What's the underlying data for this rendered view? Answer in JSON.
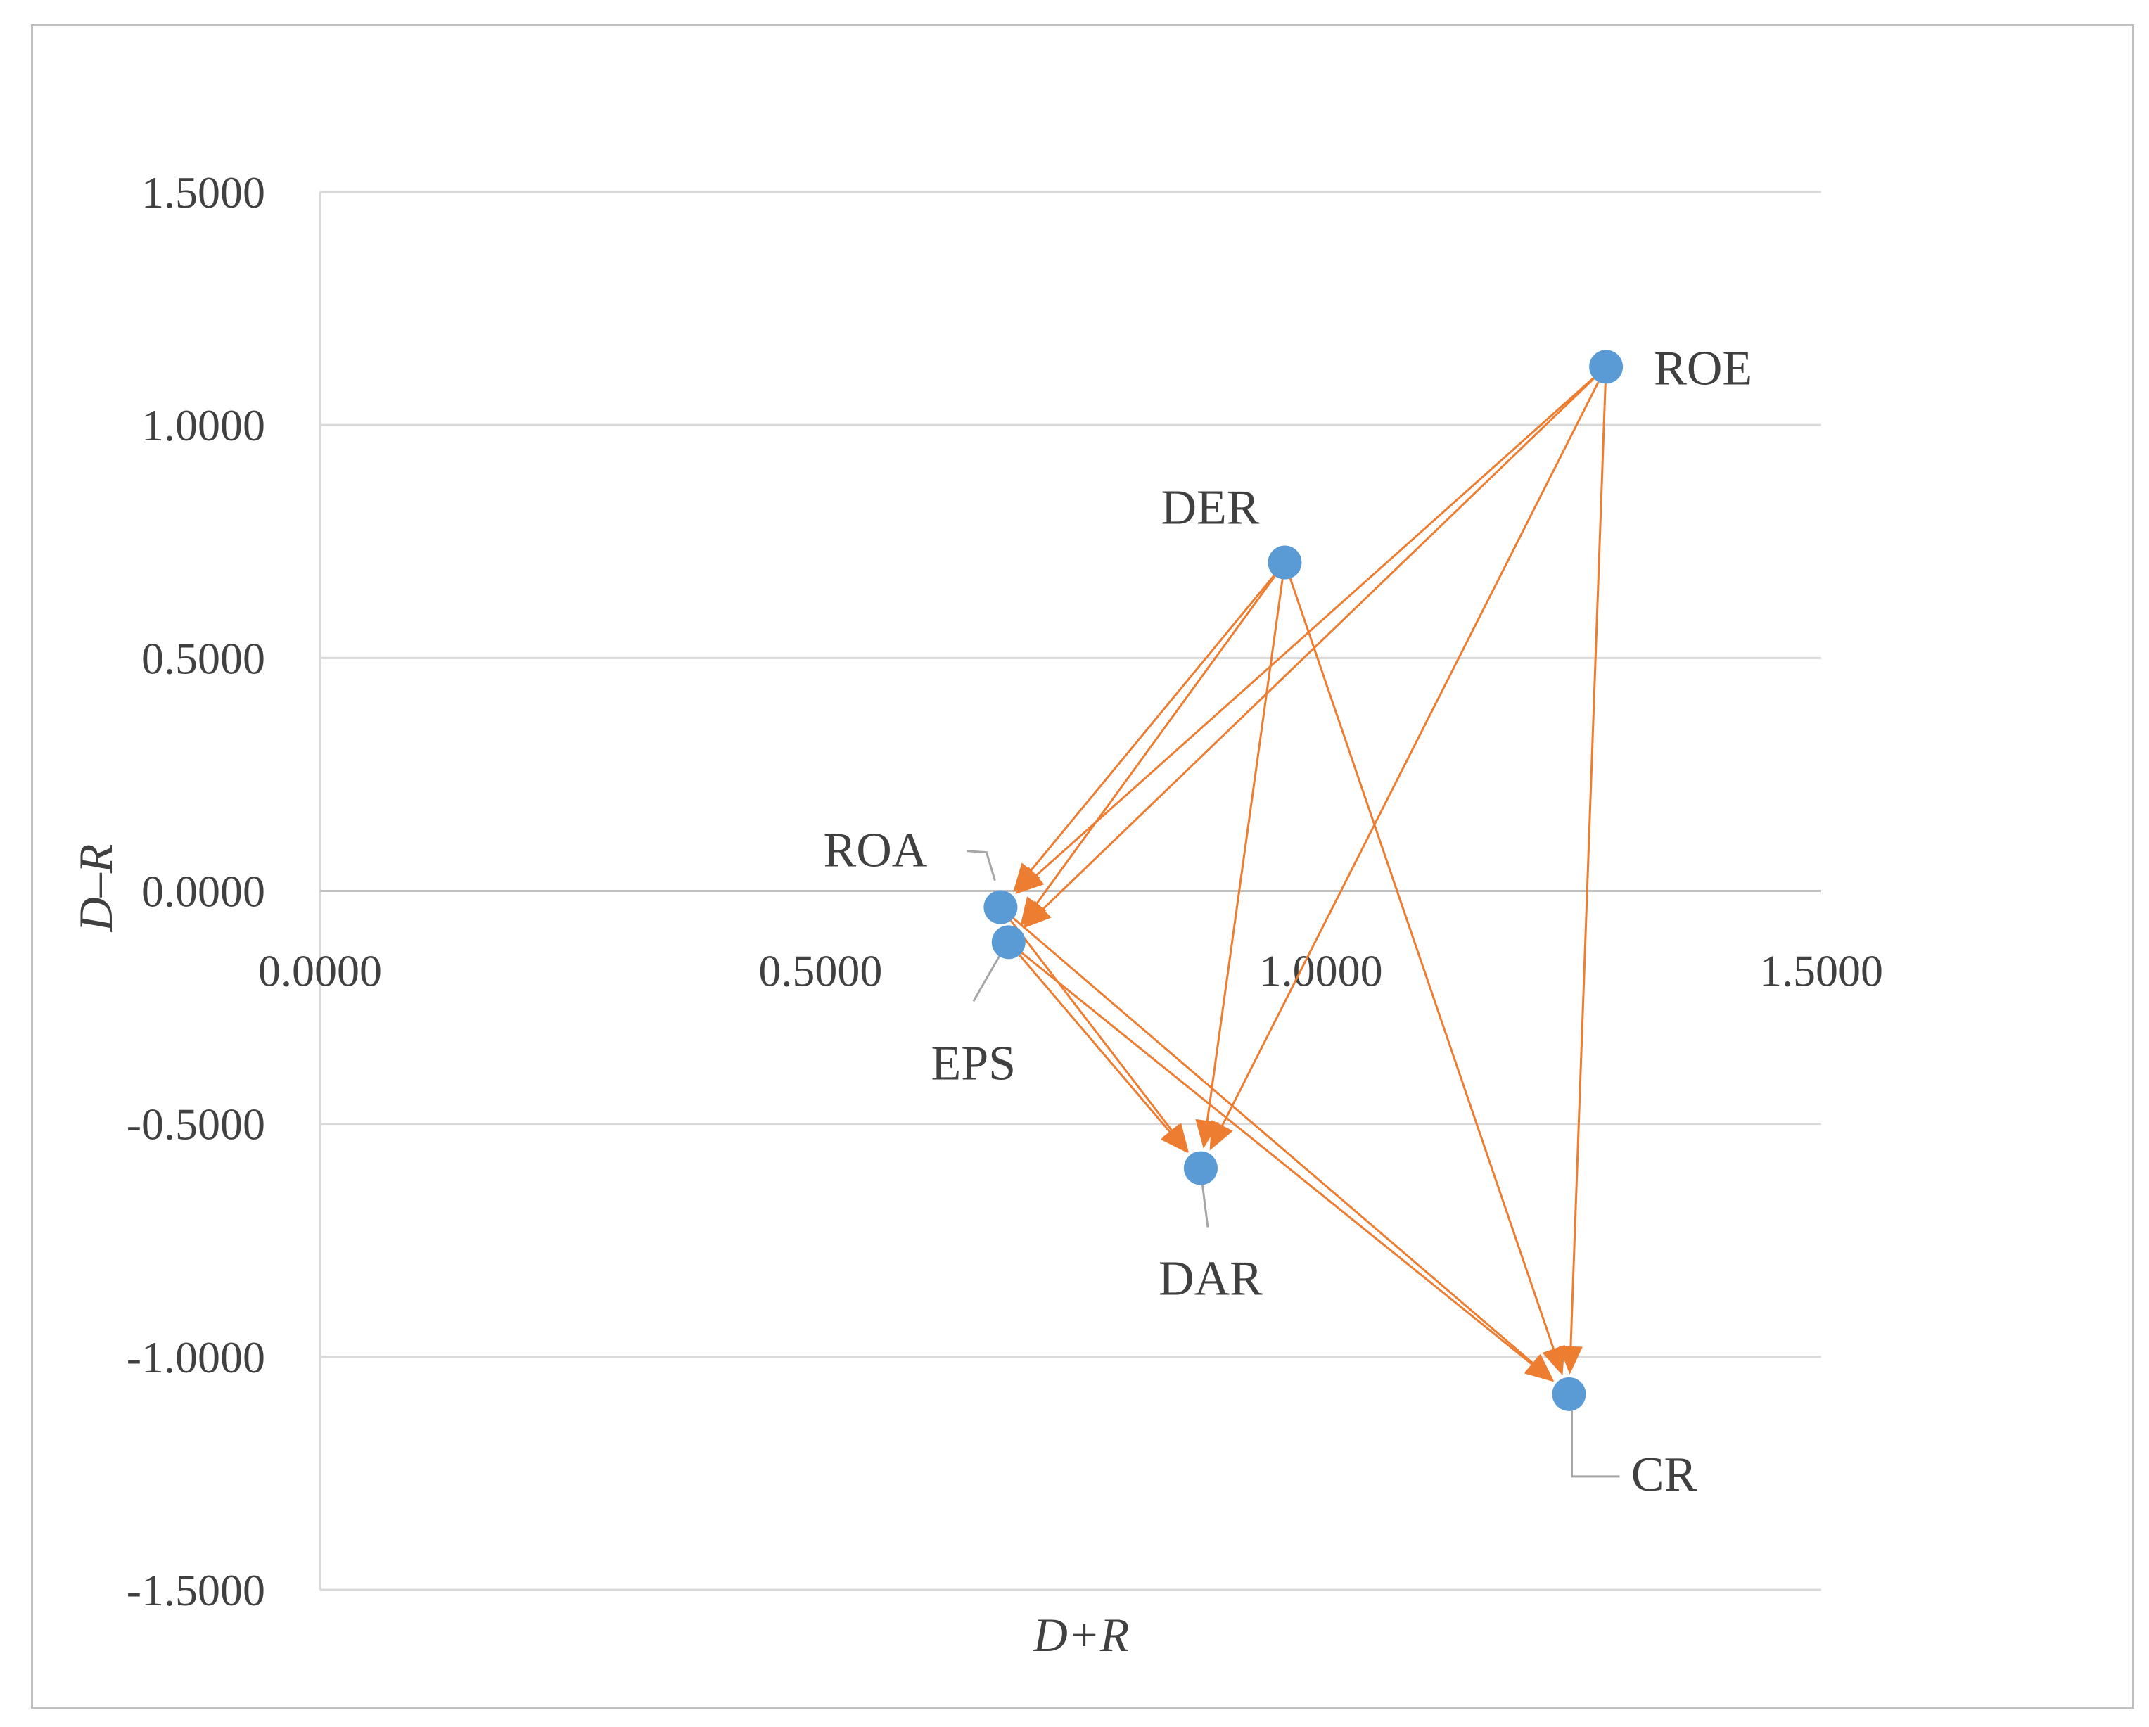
{
  "chart_data": {
    "type": "scatter",
    "title": "",
    "xlabel": "D+R",
    "ylabel": "D–R",
    "xlim": [
      0,
      1.5
    ],
    "ylim": [
      -1.5,
      1.5
    ],
    "x_ticks": [
      "0.0000",
      "0.5000",
      "1.0000",
      "1.5000"
    ],
    "y_ticks": [
      "1.5000",
      "1.0000",
      "0.5000",
      "0.0000",
      "-0.5000",
      "-1.0000",
      "-1.5000"
    ],
    "grid": true,
    "point_color": "#5b9bd5",
    "arrow_color": "#ed7d31",
    "points": [
      {
        "name": "ROE",
        "x": 1.285,
        "y": 1.125
      },
      {
        "name": "DER",
        "x": 0.964,
        "y": 0.705
      },
      {
        "name": "ROA",
        "x": 0.68,
        "y": -0.035
      },
      {
        "name": "EPS",
        "x": 0.688,
        "y": -0.11
      },
      {
        "name": "DAR",
        "x": 0.88,
        "y": -0.595
      },
      {
        "name": "CR",
        "x": 1.248,
        "y": -1.08
      }
    ],
    "arrows": [
      {
        "from": "ROE",
        "to": "ROA"
      },
      {
        "from": "ROE",
        "to": "EPS"
      },
      {
        "from": "ROE",
        "to": "DAR"
      },
      {
        "from": "ROE",
        "to": "CR"
      },
      {
        "from": "DER",
        "to": "ROA"
      },
      {
        "from": "DER",
        "to": "EPS"
      },
      {
        "from": "DER",
        "to": "DAR"
      },
      {
        "from": "DER",
        "to": "CR"
      },
      {
        "from": "ROA",
        "to": "DAR"
      },
      {
        "from": "ROA",
        "to": "CR"
      },
      {
        "from": "EPS",
        "to": "DAR"
      },
      {
        "from": "EPS",
        "to": "CR"
      }
    ]
  }
}
